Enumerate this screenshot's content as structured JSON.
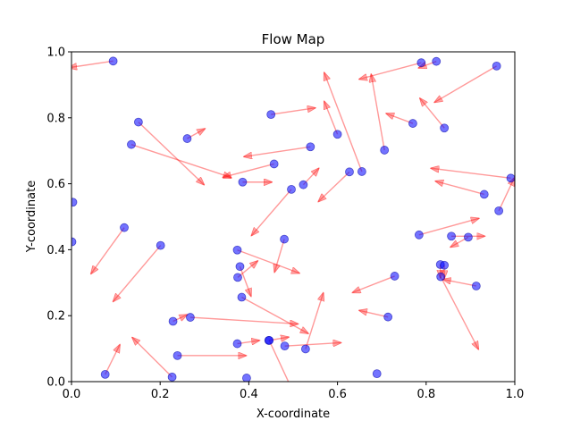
{
  "chart_data": {
    "type": "scatter",
    "title": "Flow Map",
    "xlabel": "X-coordinate",
    "ylabel": "Y-coordinate",
    "xlim": [
      0.0,
      1.0
    ],
    "ylim": [
      0.0,
      1.0
    ],
    "xticks": [
      "0.0",
      "0.2",
      "0.4",
      "0.6",
      "0.8",
      "1.0"
    ],
    "yticks": [
      "0.0",
      "0.2",
      "0.4",
      "0.6",
      "0.8",
      "1.0"
    ],
    "grid": false,
    "point_color": "#0000ff",
    "arrow_color": "#ff0000",
    "points": [
      {
        "x": 0.094,
        "y": 0.972,
        "dx": -0.1,
        "dy": -0.02
      },
      {
        "x": 0.003,
        "y": 0.544,
        "dx": 0.0,
        "dy": 0.0
      },
      {
        "x": 0.001,
        "y": 0.424,
        "dx": 0.0,
        "dy": 0.0
      },
      {
        "x": 0.119,
        "y": 0.467,
        "dx": -0.075,
        "dy": -0.14
      },
      {
        "x": 0.151,
        "y": 0.787,
        "dx": 0.148,
        "dy": -0.19
      },
      {
        "x": 0.135,
        "y": 0.719,
        "dx": 0.225,
        "dy": -0.1
      },
      {
        "x": 0.201,
        "y": 0.413,
        "dx": -0.107,
        "dy": -0.17
      },
      {
        "x": 0.076,
        "y": 0.022,
        "dx": 0.033,
        "dy": 0.09
      },
      {
        "x": 0.227,
        "y": 0.014,
        "dx": -0.09,
        "dy": 0.12
      },
      {
        "x": 0.261,
        "y": 0.737,
        "dx": 0.04,
        "dy": 0.03
      },
      {
        "x": 0.229,
        "y": 0.183,
        "dx": 0.032,
        "dy": 0.02
      },
      {
        "x": 0.268,
        "y": 0.195,
        "dx": 0.243,
        "dy": -0.02
      },
      {
        "x": 0.239,
        "y": 0.079,
        "dx": 0.155,
        "dy": 0.0
      },
      {
        "x": 0.386,
        "y": 0.605,
        "dx": 0.066,
        "dy": 0.0
      },
      {
        "x": 0.457,
        "y": 0.66,
        "dx": -0.115,
        "dy": -0.04
      },
      {
        "x": 0.45,
        "y": 0.81,
        "dx": 0.1,
        "dy": 0.02
      },
      {
        "x": 0.539,
        "y": 0.712,
        "dx": -0.15,
        "dy": -0.03
      },
      {
        "x": 0.374,
        "y": 0.399,
        "dx": 0.14,
        "dy": -0.07
      },
      {
        "x": 0.38,
        "y": 0.349,
        "dx": 0.025,
        "dy": -0.09
      },
      {
        "x": 0.375,
        "y": 0.316,
        "dx": 0.045,
        "dy": 0.05
      },
      {
        "x": 0.384,
        "y": 0.256,
        "dx": 0.15,
        "dy": -0.11
      },
      {
        "x": 0.48,
        "y": 0.432,
        "dx": -0.022,
        "dy": -0.1
      },
      {
        "x": 0.374,
        "y": 0.115,
        "dx": 0.05,
        "dy": 0.01
      },
      {
        "x": 0.395,
        "y": 0.011,
        "dx": 0.0,
        "dy": 0.0
      },
      {
        "x": 0.445,
        "y": 0.125,
        "dx": 0.045,
        "dy": 0.01
      },
      {
        "x": 0.446,
        "y": 0.125,
        "dx": 0.09,
        "dy": -0.26
      },
      {
        "x": 0.481,
        "y": 0.108,
        "dx": 0.127,
        "dy": 0.01
      },
      {
        "x": 0.528,
        "y": 0.099,
        "dx": 0.04,
        "dy": 0.17
      },
      {
        "x": 0.496,
        "y": 0.583,
        "dx": -0.09,
        "dy": -0.14
      },
      {
        "x": 0.523,
        "y": 0.597,
        "dx": 0.035,
        "dy": 0.05
      },
      {
        "x": 0.627,
        "y": 0.636,
        "dx": -0.07,
        "dy": -0.09
      },
      {
        "x": 0.6,
        "y": 0.75,
        "dx": -0.03,
        "dy": 0.1
      },
      {
        "x": 0.655,
        "y": 0.637,
        "dx": -0.085,
        "dy": 0.3
      },
      {
        "x": 0.706,
        "y": 0.702,
        "dx": -0.03,
        "dy": 0.23
      },
      {
        "x": 0.77,
        "y": 0.783,
        "dx": -0.06,
        "dy": 0.03
      },
      {
        "x": 0.789,
        "y": 0.967,
        "dx": -0.14,
        "dy": -0.05
      },
      {
        "x": 0.823,
        "y": 0.971,
        "dx": -0.04,
        "dy": -0.02
      },
      {
        "x": 0.841,
        "y": 0.769,
        "dx": -0.055,
        "dy": 0.09
      },
      {
        "x": 0.959,
        "y": 0.957,
        "dx": -0.14,
        "dy": -0.11
      },
      {
        "x": 0.991,
        "y": 0.617,
        "dx": -0.18,
        "dy": 0.03
      },
      {
        "x": 0.931,
        "y": 0.568,
        "dx": -0.11,
        "dy": 0.04
      },
      {
        "x": 0.964,
        "y": 0.518,
        "dx": 0.035,
        "dy": 0.1
      },
      {
        "x": 0.784,
        "y": 0.445,
        "dx": 0.135,
        "dy": 0.05
      },
      {
        "x": 0.857,
        "y": 0.441,
        "dx": 0.075,
        "dy": 0.0
      },
      {
        "x": 0.895,
        "y": 0.438,
        "dx": -0.04,
        "dy": -0.03
      },
      {
        "x": 0.729,
        "y": 0.32,
        "dx": -0.095,
        "dy": -0.05
      },
      {
        "x": 0.714,
        "y": 0.196,
        "dx": -0.065,
        "dy": 0.02
      },
      {
        "x": 0.832,
        "y": 0.355,
        "dx": 0.0,
        "dy": -0.04
      },
      {
        "x": 0.841,
        "y": 0.353,
        "dx": 0.0,
        "dy": -0.04
      },
      {
        "x": 0.913,
        "y": 0.29,
        "dx": -0.075,
        "dy": 0.02
      },
      {
        "x": 0.833,
        "y": 0.318,
        "dx": 0.085,
        "dy": -0.22
      },
      {
        "x": 0.689,
        "y": 0.024,
        "dx": 0.0,
        "dy": 0.0
      }
    ]
  }
}
